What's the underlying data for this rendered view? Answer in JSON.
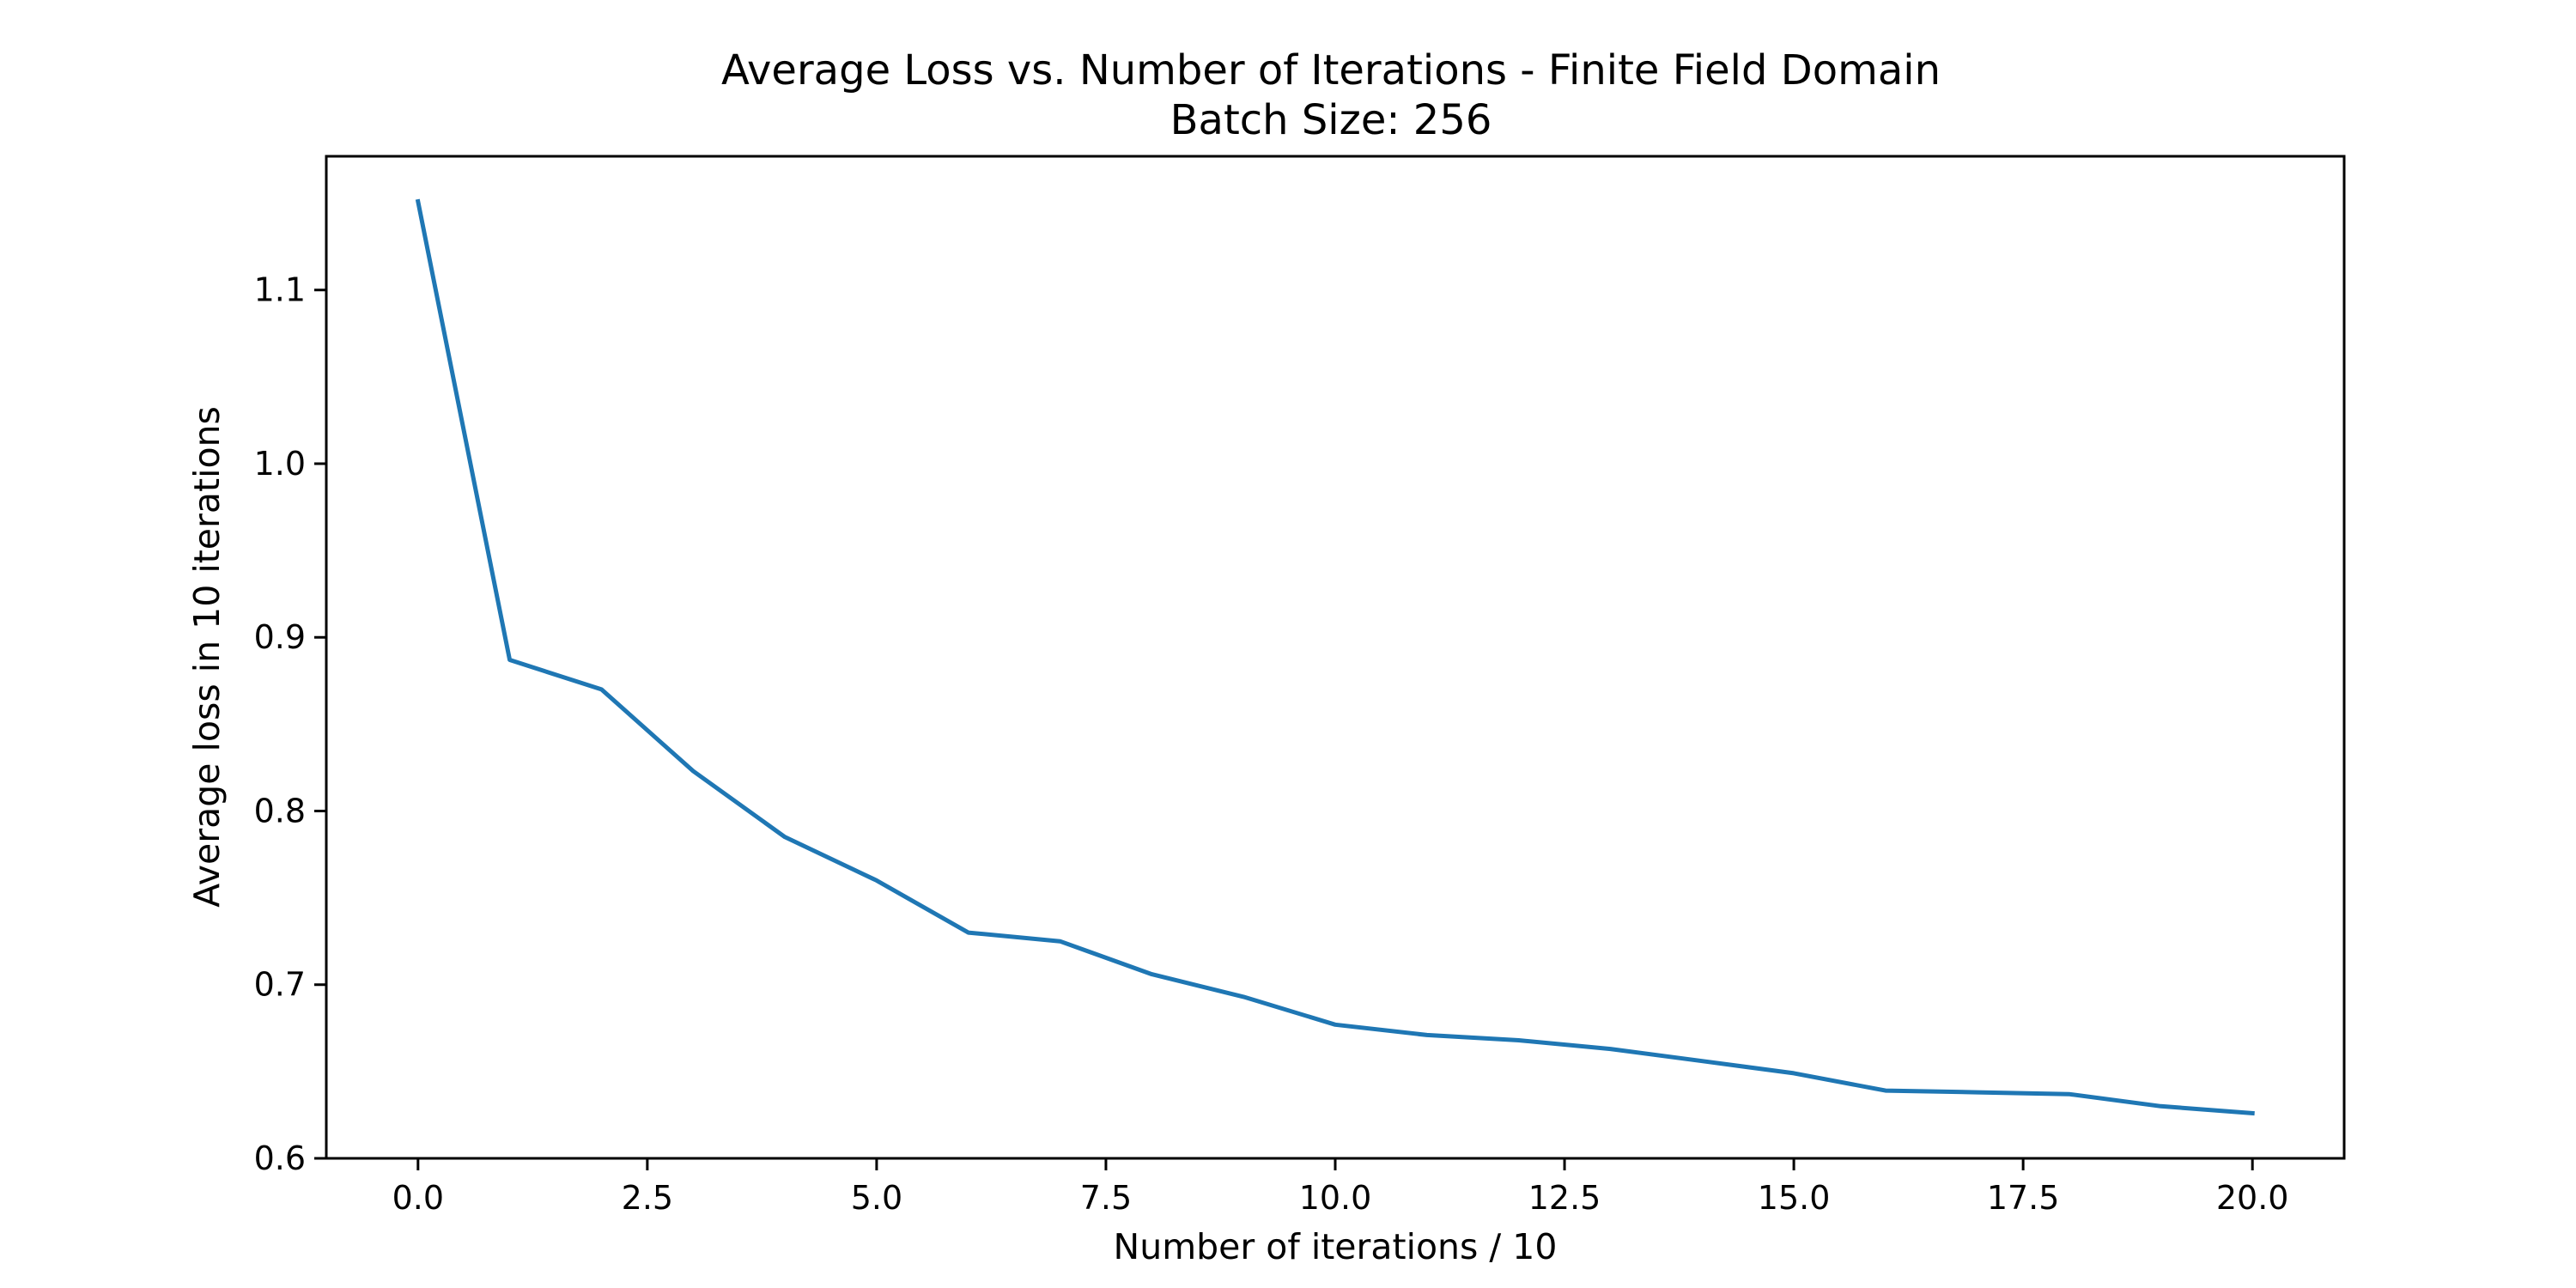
{
  "chart_data": {
    "type": "line",
    "title": "Average Loss vs. Number of Iterations - Finite Field Domain",
    "subtitle": "Batch Size: 256",
    "xlabel": "Number of iterations / 10",
    "ylabel": "Average loss in 10 iterations",
    "xlim": [
      -1.0,
      21.0
    ],
    "ylim": [
      0.6,
      1.177
    ],
    "xticks": [
      0.0,
      2.5,
      5.0,
      7.5,
      10.0,
      12.5,
      15.0,
      17.5,
      20.0
    ],
    "xtick_labels": [
      "0.0",
      "2.5",
      "5.0",
      "7.5",
      "10.0",
      "12.5",
      "15.0",
      "17.5",
      "20.0"
    ],
    "yticks": [
      0.6,
      0.7,
      0.8,
      0.9,
      1.0,
      1.1
    ],
    "ytick_labels": [
      "0.6",
      "0.7",
      "0.8",
      "0.9",
      "1.0",
      "1.1"
    ],
    "grid": false,
    "legend": "none",
    "series": [
      {
        "color": "#1f77b4",
        "x": [
          0,
          1,
          2,
          3,
          4,
          5,
          6,
          7,
          8,
          9,
          10,
          11,
          12,
          13,
          14,
          15,
          16,
          17,
          18,
          19,
          20
        ],
        "y": [
          1.151,
          0.887,
          0.87,
          0.823,
          0.785,
          0.76,
          0.73,
          0.725,
          0.706,
          0.693,
          0.677,
          0.671,
          0.668,
          0.663,
          0.656,
          0.649,
          0.639,
          0.638,
          0.637,
          0.63,
          0.626
        ]
      }
    ]
  }
}
